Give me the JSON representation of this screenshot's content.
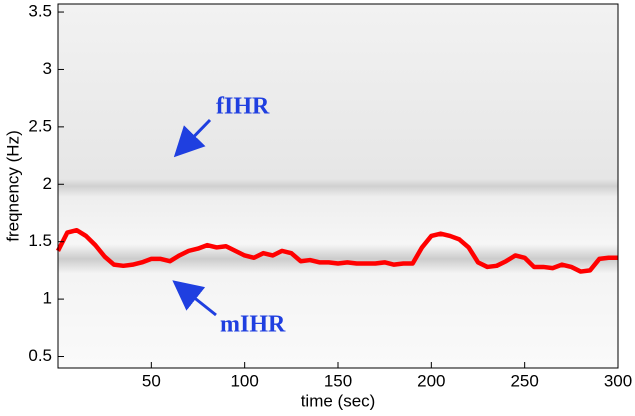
{
  "chart_data": {
    "type": "line",
    "xlabel": "time (sec)",
    "ylabel": "freqnency (Hz)",
    "annotations": [
      "fIHR",
      "mIHR"
    ],
    "xlim": [
      0,
      300
    ],
    "ylim": [
      0.4,
      3.57
    ],
    "xticks": [
      50,
      100,
      150,
      200,
      250,
      300
    ],
    "yticks": [
      0.5,
      1,
      1.5,
      2,
      2.5,
      3,
      3.5
    ],
    "x": [
      0,
      5,
      10,
      15,
      20,
      25,
      30,
      35,
      40,
      45,
      50,
      55,
      60,
      65,
      70,
      75,
      80,
      85,
      90,
      95,
      100,
      105,
      110,
      115,
      120,
      125,
      130,
      135,
      140,
      145,
      150,
      155,
      160,
      165,
      170,
      175,
      180,
      185,
      190,
      195,
      200,
      205,
      210,
      215,
      220,
      225,
      230,
      235,
      240,
      245,
      250,
      255,
      260,
      265,
      270,
      275,
      280,
      285,
      290,
      295,
      300
    ],
    "series": [
      {
        "color": "#ff0000",
        "values": [
          1.42,
          1.58,
          1.6,
          1.55,
          1.47,
          1.37,
          1.3,
          1.29,
          1.3,
          1.32,
          1.35,
          1.35,
          1.33,
          1.38,
          1.42,
          1.44,
          1.47,
          1.45,
          1.46,
          1.42,
          1.38,
          1.36,
          1.4,
          1.38,
          1.42,
          1.4,
          1.33,
          1.34,
          1.32,
          1.32,
          1.31,
          1.32,
          1.31,
          1.31,
          1.31,
          1.32,
          1.3,
          1.31,
          1.31,
          1.45,
          1.55,
          1.57,
          1.55,
          1.52,
          1.45,
          1.32,
          1.28,
          1.29,
          1.33,
          1.38,
          1.36,
          1.28,
          1.28,
          1.27,
          1.3,
          1.28,
          1.24,
          1.25,
          1.35,
          1.36,
          1.36
        ]
      }
    ]
  }
}
